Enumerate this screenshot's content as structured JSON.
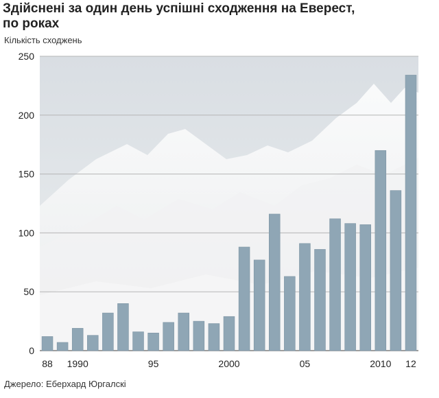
{
  "chart_data": {
    "type": "bar",
    "title_line1": "Здійснені за один день успішні сходження на Еверест,",
    "title_line2": "по роках",
    "ylabel": "Кількість сходжень",
    "source": "Джерело: Еберхард Юргалскі",
    "categories": [
      1988,
      1989,
      1990,
      1991,
      1992,
      1993,
      1994,
      1995,
      1996,
      1997,
      1998,
      1999,
      2000,
      2001,
      2002,
      2003,
      2004,
      2005,
      2006,
      2007,
      2008,
      2009,
      2010,
      2011,
      2012
    ],
    "values": [
      12,
      7,
      19,
      13,
      32,
      40,
      16,
      15,
      24,
      32,
      25,
      23,
      29,
      88,
      77,
      116,
      63,
      91,
      86,
      112,
      108,
      107,
      170,
      136,
      234
    ],
    "ylim": [
      0,
      250
    ],
    "yticks": [
      0,
      50,
      100,
      150,
      200,
      250
    ],
    "xtick_labels": [
      {
        "at": 1988,
        "label": "88"
      },
      {
        "at": 1990,
        "label": "1990"
      },
      {
        "at": 1995,
        "label": "95"
      },
      {
        "at": 2000,
        "label": "2000"
      },
      {
        "at": 2005,
        "label": "05"
      },
      {
        "at": 2010,
        "label": "2010"
      },
      {
        "at": 2012,
        "label": "12"
      }
    ],
    "grid": true,
    "colors": {
      "bar": "#8fa6b5",
      "bar_edge": "#7e95a4",
      "gridline": "#b5b5b5",
      "background_sky": "#dfe4e8"
    }
  }
}
